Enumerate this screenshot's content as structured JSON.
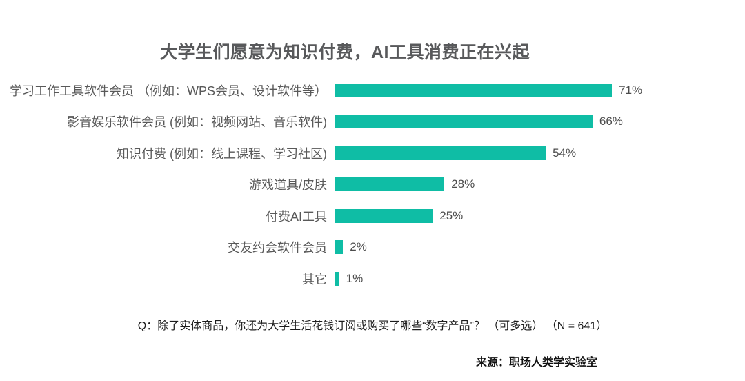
{
  "title": "大学生们愿意为知识付费，AI工具消费正在兴起",
  "chart_data": {
    "type": "bar",
    "orientation": "horizontal",
    "title": "大学生们愿意为知识付费，AI工具消费正在兴起",
    "categories": [
      "学习工作工具软件会员 （例如：WPS会员、设计软件等）",
      "影音娱乐软件会员 (例如：视频网站、音乐软件)",
      "知识付费 (例如：线上课程、学习社区)",
      "游戏道具/皮肤",
      "付费AI工具",
      "交友约会软件会员",
      "其它"
    ],
    "values": [
      71,
      66,
      54,
      28,
      25,
      2,
      1
    ],
    "value_labels": [
      "71%",
      "66%",
      "54%",
      "28%",
      "25%",
      "2%",
      "1%"
    ],
    "unit": "percent",
    "xlim": [
      0,
      75
    ],
    "grid": false,
    "bar_color": "#0fbda5"
  },
  "footer": {
    "question": "Q：除了实体商品，你还为大学生活花钱订阅或购买了哪些“数字产品”？ （可多选） （N = 641）",
    "source": "来源：职场人类学实验室"
  },
  "colors": {
    "background": "#ffffff",
    "bar": "#0fbda5",
    "title_text": "#58595b",
    "label_text": "#595959",
    "value_text": "#4c4c4c",
    "axis_line": "#dcdcdc",
    "question_text": "#1c1c1c",
    "source_text": "#111111"
  }
}
